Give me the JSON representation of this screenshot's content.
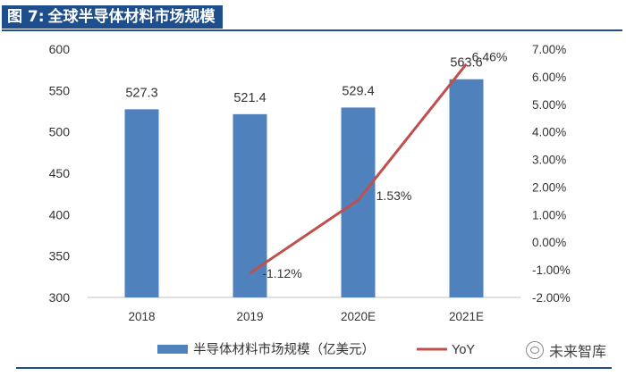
{
  "figure": {
    "label": "图 7:",
    "title": "全球半导体材料市场规模"
  },
  "watermark": {
    "text": "未来智库"
  },
  "colors": {
    "bar": "#4f81bd",
    "line": "#c0504d",
    "title_bg": "#1f4e8c"
  },
  "chart_data": {
    "type": "bar",
    "categories": [
      "2018",
      "2019",
      "2020E",
      "2021E"
    ],
    "series": [
      {
        "name": "半导体材料市场规模（亿美元）",
        "type": "bar",
        "axis": "left",
        "values": [
          527.3,
          521.4,
          529.4,
          563.6
        ],
        "labels": [
          "527.3",
          "521.4",
          "529.4",
          "563.6"
        ]
      },
      {
        "name": "YoY",
        "type": "line",
        "axis": "right",
        "values": [
          null,
          -1.12,
          1.53,
          6.46
        ],
        "labels": [
          "",
          "-1.12%",
          "1.53%",
          "6.46%"
        ]
      }
    ],
    "y_left": {
      "range": [
        300,
        600
      ],
      "ticks": [
        "300",
        "350",
        "400",
        "450",
        "500",
        "550",
        "600"
      ]
    },
    "y_right": {
      "range": [
        -2,
        7
      ],
      "ticks": [
        "-2.00%",
        "-1.00%",
        "0.00%",
        "1.00%",
        "2.00%",
        "3.00%",
        "4.00%",
        "5.00%",
        "6.00%",
        "7.00%"
      ]
    },
    "legend": "bottom",
    "grid": false
  }
}
